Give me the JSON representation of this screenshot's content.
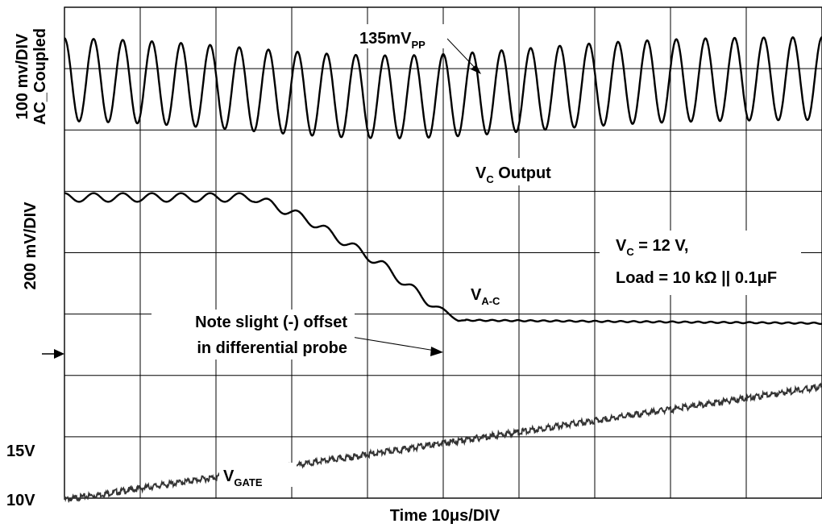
{
  "chart_data": {
    "type": "line",
    "kind": "oscilloscope-capture",
    "grid": true,
    "grid_divisions": {
      "x": 10,
      "y": 8
    },
    "x_axis": {
      "label": "Time 10μs/DIV",
      "range_div": [
        0,
        10
      ]
    },
    "y_labels": {
      "vc_scale_line1": "100 mv/DIV",
      "vc_scale_line2": "AC_Coupled",
      "vac_scale": "200 mV/DIV",
      "vgate_tick_15": "15V",
      "vgate_tick_10": "10V"
    },
    "annotations": {
      "ripple": {
        "main": "135mV",
        "sub": "PP"
      },
      "vc_output": {
        "main": "V",
        "sub": "C",
        "rest": " Output"
      },
      "conditions_line1": {
        "main": "V",
        "sub": "C",
        "rest": " = 12 V,"
      },
      "conditions_line2": "Load = 10 kΩ || 0.1μF",
      "vac": {
        "main": "V",
        "sub": "A-C"
      },
      "note_line1": "Note slight (-) offset",
      "note_line2": "in differential probe",
      "vgate": {
        "main": "V",
        "sub": "GATE"
      }
    },
    "series": [
      {
        "name": "V_C Output",
        "scale_mV_per_div": 100,
        "coupling": "AC",
        "ripple_mVpp": 135,
        "ripple_cycles": 26,
        "center_div": 6.84,
        "dip_center_div": 4.3,
        "dip_depth_div": 0.3
      },
      {
        "name": "V_A-C",
        "scale_mV_per_div": 200,
        "x_div": [
          0,
          2.5,
          3.2,
          3.8,
          4.2,
          4.8,
          5.2,
          10
        ],
        "y_div": [
          4.9,
          4.9,
          4.55,
          4.1,
          3.8,
          3.2,
          2.9,
          2.85
        ],
        "ripple_amp_div": 0.07,
        "final_offset_div": -0.05,
        "zero_marker_div": 2.85
      },
      {
        "name": "V_GATE",
        "x_div": [
          0,
          10
        ],
        "y_V": [
          10,
          19.2
        ],
        "tick_V": [
          10,
          15
        ],
        "tick_div": [
          0,
          1
        ]
      }
    ]
  }
}
